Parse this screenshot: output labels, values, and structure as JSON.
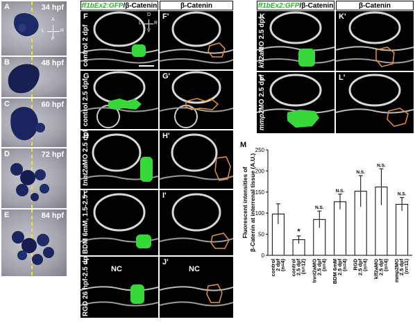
{
  "ish_panels": [
    {
      "label": "A",
      "stage": "34 hpf"
    },
    {
      "label": "B",
      "stage": "48 hpf"
    },
    {
      "label": "C",
      "stage": "60 hpf"
    },
    {
      "label": "D",
      "stage": "72 hpf"
    },
    {
      "label": "E",
      "stage": "84 hpf"
    }
  ],
  "orientation_ish": {
    "a": "A",
    "p": "P",
    "l": "L",
    "r": "R"
  },
  "orientation_f": {
    "d": "D",
    "v": "V",
    "l": "L",
    "r": "R"
  },
  "headers": {
    "gfp_prefix": "ff1bEx2:GFP",
    "gfp_suffix": "/β-Catenin",
    "catenin": "β-Catenin"
  },
  "nc_label": "NC",
  "conf_rows_left": [
    {
      "left": "F",
      "right": "F'",
      "condition": "control 2 dpf"
    },
    {
      "left": "G",
      "right": "G'",
      "condition": "control 2.5 dpf"
    },
    {
      "left": "H",
      "right": "H'",
      "condition_italic": "tnnt2a",
      "condition": "MO 2.5 dpf"
    },
    {
      "left": "I",
      "right": "I'",
      "condition": "BDM 6mM, 1.5-2.5 dpf"
    },
    {
      "left": "J",
      "right": "J'",
      "condition": "RGD 26 hpf-2.5 dpf"
    }
  ],
  "conf_rows_right": [
    {
      "left": "K",
      "right": "K'",
      "condition_italic": "klf2a",
      "condition": "MO 2.5 dpf"
    },
    {
      "left": "L",
      "right": "L'",
      "condition_italic": "mmp2",
      "condition": "MO 2.5 dpf"
    }
  ],
  "chart_panel_label": "M",
  "chart_data": {
    "type": "bar",
    "ylabel_line1": "Fluorescent intensities of",
    "ylabel_line2": "β-Catenin at interrenal tissue (A.U.)",
    "ylim": [
      0,
      250
    ],
    "yticks": [
      "0",
      "50",
      "100",
      "150",
      "200",
      "250"
    ],
    "categories": [
      {
        "line1": "control",
        "line2": "2 dpf",
        "n": "(n=4)"
      },
      {
        "line1": "control",
        "line2": "2.5 dpf",
        "n": "(n=12)"
      },
      {
        "line1": "tnnt2aMO",
        "line2": "2.5 dpf",
        "n": "(n=4)"
      },
      {
        "line1": "BDM 6mM",
        "line2": "2.5 dpf",
        "n": "(n=4)"
      },
      {
        "line1": "RGD",
        "line2": "2.5 dpf",
        "n": "(n=4)"
      },
      {
        "line1": "klf2aMO",
        "line2": "2.5 dpf",
        "n": "(n=4)"
      },
      {
        "line1": "mmp2MO",
        "line2": "2.5 dpf",
        "n": "(n=11)"
      }
    ],
    "values": [
      98,
      37,
      85,
      127,
      152,
      162,
      121
    ],
    "errors": [
      24,
      9,
      20,
      18,
      37,
      43,
      16
    ],
    "significance": [
      "",
      "*",
      "N.S.",
      "N.S.",
      "N.S.",
      "N.S.",
      "N.S."
    ],
    "bar_color": "#ffffff"
  }
}
